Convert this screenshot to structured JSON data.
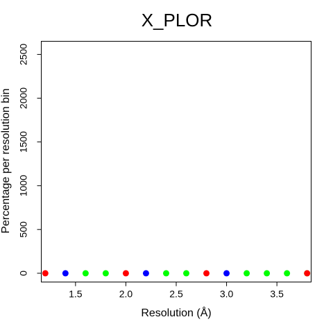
{
  "chart_data": {
    "type": "scatter",
    "title": "X_PLOR",
    "xlabel": "Resolution (Å)",
    "ylabel": "Percentage per resolution bin",
    "xlim": [
      1.16,
      3.84
    ],
    "ylim": [
      -100,
      2650
    ],
    "x_ticks": [
      1.5,
      2.0,
      2.5,
      3.0,
      3.5
    ],
    "x_tick_labels": [
      "1.5",
      "2.0",
      "2.5",
      "3.0",
      "3.5"
    ],
    "y_ticks": [
      0,
      500,
      1000,
      1500,
      2000,
      2500
    ],
    "y_tick_labels": [
      "0",
      "500",
      "1000",
      "1500",
      "2000",
      "2500"
    ],
    "grid": false,
    "points": [
      {
        "x": 1.2,
        "y": 0,
        "color": "#ff0000"
      },
      {
        "x": 1.4,
        "y": 0,
        "color": "#0000ff"
      },
      {
        "x": 1.6,
        "y": 0,
        "color": "#00ff00"
      },
      {
        "x": 1.8,
        "y": 0,
        "color": "#00ff00"
      },
      {
        "x": 2.0,
        "y": 0,
        "color": "#ff0000"
      },
      {
        "x": 2.2,
        "y": 0,
        "color": "#0000ff"
      },
      {
        "x": 2.4,
        "y": 0,
        "color": "#00ff00"
      },
      {
        "x": 2.6,
        "y": 0,
        "color": "#00ff00"
      },
      {
        "x": 2.8,
        "y": 0,
        "color": "#ff0000"
      },
      {
        "x": 3.0,
        "y": 0,
        "color": "#0000ff"
      },
      {
        "x": 3.2,
        "y": 0,
        "color": "#00ff00"
      },
      {
        "x": 3.4,
        "y": 0,
        "color": "#00ff00"
      },
      {
        "x": 3.6,
        "y": 0,
        "color": "#00ff00"
      },
      {
        "x": 3.8,
        "y": 0,
        "color": "#00ff00"
      },
      {
        "x": 3.8,
        "y": 0,
        "color": "#ff0000"
      }
    ]
  }
}
